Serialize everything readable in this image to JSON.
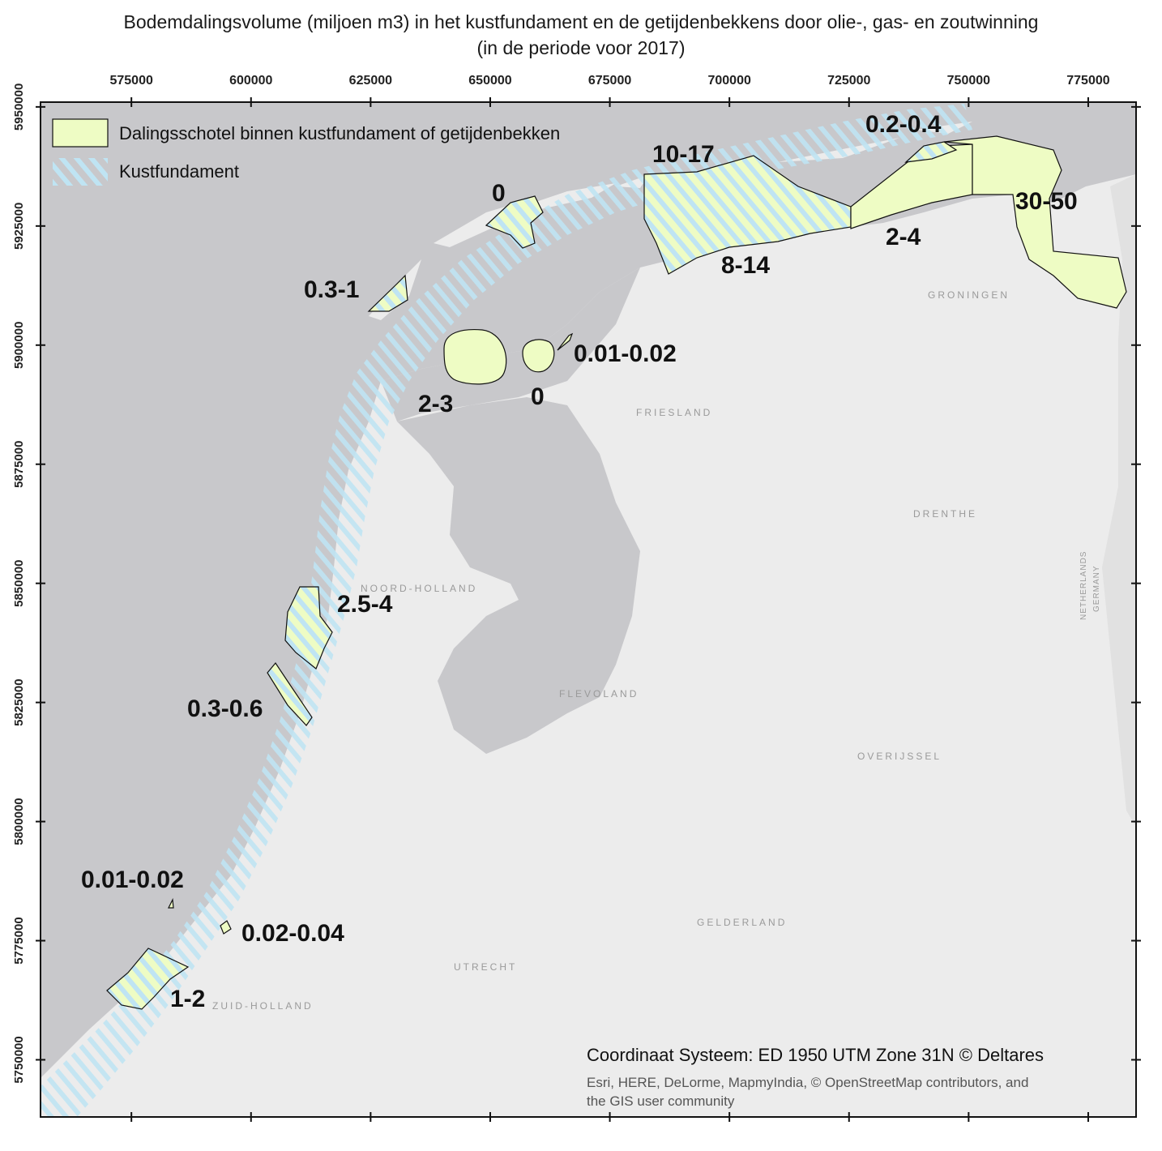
{
  "title": {
    "line1": "Bodemdalingsvolume (miljoen m3) in het kustfundament en de getijdenbekkens door olie-, gas- en zoutwinning",
    "line2": "(in de periode voor 2017)"
  },
  "axes": {
    "x_ticks": [
      "575000",
      "600000",
      "625000",
      "650000",
      "675000",
      "700000",
      "725000",
      "750000",
      "775000"
    ],
    "y_ticks": [
      "5950000",
      "5925000",
      "5900000",
      "5875000",
      "5850000",
      "5825000",
      "5800000",
      "5775000",
      "5750000"
    ],
    "x_range": [
      556000,
      785000
    ],
    "y_range": [
      5738000,
      5951000
    ]
  },
  "legend": {
    "items": [
      {
        "label": "Dalingsschotel binnen kustfundament of getijdenbekken",
        "color": "#eefcc4"
      },
      {
        "label": "Kustfundament",
        "color": "#bfe4f3"
      }
    ]
  },
  "labels": [
    {
      "text": "10-17"
    },
    {
      "text": "0.2-0.4"
    },
    {
      "text": "30-50"
    },
    {
      "text": "2-4"
    },
    {
      "text": "8-14"
    },
    {
      "text": "0"
    },
    {
      "text": "0.3-1"
    },
    {
      "text": "0.01-0.02"
    },
    {
      "text": "2-3"
    },
    {
      "text": "0"
    },
    {
      "text": "2.5-4"
    },
    {
      "text": "0.3-0.6"
    },
    {
      "text": "0.01-0.02"
    },
    {
      "text": "0.02-0.04"
    },
    {
      "text": "1-2"
    }
  ],
  "regions": [
    "GRONINGEN",
    "FRIESLAND",
    "DRENTHE",
    "NOORD-HOLLAND",
    "FLEVOLAND",
    "OVERIJSSEL",
    "GELDERLAND",
    "UTRECHT",
    "ZUID-HOLLAND",
    "NETHERLANDS",
    "GERMANY"
  ],
  "credits": {
    "coord": "Coordinaat Systeem: ED 1950 UTM Zone 31N   © Deltares",
    "source1": "Esri, HERE, DeLorme, MapmyIndia, © OpenStreetMap contributors, and",
    "source2": "the GIS user community"
  },
  "colors": {
    "sea": "#c8c8cb",
    "land": "#ececec",
    "subsidence": "#eefcc4",
    "coastal": "#bfe4f3"
  }
}
